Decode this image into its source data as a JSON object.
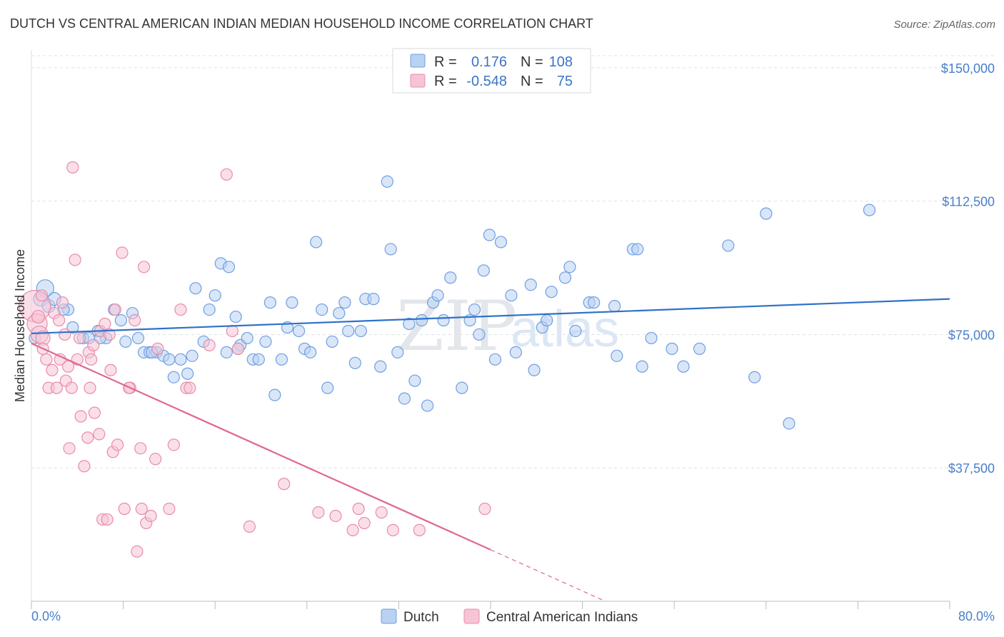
{
  "chart_data": {
    "type": "scatter",
    "title": "DUTCH VS CENTRAL AMERICAN INDIAN MEDIAN HOUSEHOLD INCOME CORRELATION CHART",
    "source": "Source: ZipAtlas.com",
    "ylabel": "Median Household Income",
    "xlim": [
      0,
      80
    ],
    "ylim": [
      0,
      155000
    ],
    "x_tick_labels": [
      "0.0%",
      "80.0%"
    ],
    "y_ticks": [
      {
        "value": 37500,
        "label": "$37,500"
      },
      {
        "value": 75000,
        "label": "$75,000"
      },
      {
        "value": 112500,
        "label": "$112,500"
      },
      {
        "value": 150000,
        "label": "$150,000"
      }
    ],
    "legend": {
      "rows": [
        {
          "r_label": "R =",
          "r_value": "0.176",
          "n_label": "N =",
          "n_value": "108"
        },
        {
          "r_label": "R =",
          "r_value": "-0.548",
          "n_label": "N =",
          "n_value": "75"
        }
      ]
    },
    "watermark": {
      "zip": "ZIP",
      "atlas": "atlas"
    },
    "series": [
      {
        "name": "Dutch",
        "color": "#6f9fe0",
        "fill": "#b9d1f2",
        "line_color": "#2e72c9",
        "trend": {
          "x0": 0,
          "y0": 75300,
          "x1": 80,
          "y1": 85000,
          "dashed_to": null
        },
        "points": [
          [
            1.2,
            88000,
            12
          ],
          [
            0.8,
            85000,
            10
          ],
          [
            1.5,
            83000,
            9
          ],
          [
            2.0,
            85000,
            9
          ],
          [
            3.2,
            82000,
            8
          ],
          [
            3.6,
            77000,
            8
          ],
          [
            4.5,
            74000,
            8
          ],
          [
            5.0,
            74000,
            8
          ],
          [
            5.8,
            76000,
            8
          ],
          [
            6.5,
            74000,
            8
          ],
          [
            7.2,
            82000,
            8
          ],
          [
            7.8,
            79000,
            8
          ],
          [
            8.2,
            73000,
            8
          ],
          [
            8.8,
            81000,
            8
          ],
          [
            9.3,
            74000,
            8
          ],
          [
            9.8,
            70000,
            8
          ],
          [
            10.3,
            70000,
            8
          ],
          [
            10.9,
            70000,
            8
          ],
          [
            11.5,
            69000,
            8
          ],
          [
            12.0,
            68000,
            8
          ],
          [
            12.4,
            63000,
            8
          ],
          [
            13.0,
            68000,
            8
          ],
          [
            13.6,
            64000,
            8
          ],
          [
            14.0,
            69000,
            8
          ],
          [
            14.3,
            88000,
            8
          ],
          [
            15.0,
            73000,
            8
          ],
          [
            15.5,
            82000,
            8
          ],
          [
            16.0,
            86000,
            8
          ],
          [
            16.5,
            95000,
            8
          ],
          [
            17.0,
            70000,
            8
          ],
          [
            17.2,
            94000,
            8
          ],
          [
            17.8,
            80000,
            8
          ],
          [
            18.2,
            72000,
            8
          ],
          [
            18.8,
            74000,
            8
          ],
          [
            19.3,
            68000,
            8
          ],
          [
            19.8,
            68000,
            8
          ],
          [
            20.4,
            73000,
            8
          ],
          [
            20.8,
            84000,
            8
          ],
          [
            21.2,
            58000,
            8
          ],
          [
            21.8,
            68000,
            8
          ],
          [
            22.3,
            77000,
            8
          ],
          [
            22.7,
            84000,
            8
          ],
          [
            23.3,
            76000,
            8
          ],
          [
            23.8,
            71000,
            8
          ],
          [
            24.3,
            70000,
            8
          ],
          [
            24.8,
            101000,
            8
          ],
          [
            25.3,
            82000,
            8
          ],
          [
            25.8,
            60000,
            8
          ],
          [
            26.2,
            73000,
            8
          ],
          [
            26.8,
            81000,
            8
          ],
          [
            27.3,
            84000,
            8
          ],
          [
            27.6,
            76000,
            8
          ],
          [
            28.2,
            67000,
            8
          ],
          [
            28.7,
            76000,
            8
          ],
          [
            29.1,
            85000,
            8
          ],
          [
            29.8,
            85000,
            8
          ],
          [
            30.4,
            66000,
            8
          ],
          [
            31.0,
            118000,
            8
          ],
          [
            31.3,
            99000,
            8
          ],
          [
            31.9,
            70000,
            8
          ],
          [
            32.5,
            57000,
            8
          ],
          [
            32.9,
            78000,
            8
          ],
          [
            33.4,
            62000,
            8
          ],
          [
            34.0,
            79000,
            8
          ],
          [
            34.5,
            55000,
            8
          ],
          [
            35.0,
            84000,
            8
          ],
          [
            35.4,
            86000,
            8
          ],
          [
            35.9,
            79000,
            8
          ],
          [
            36.5,
            91000,
            8
          ],
          [
            37.5,
            60000,
            8
          ],
          [
            38.2,
            79000,
            8
          ],
          [
            38.6,
            82000,
            8
          ],
          [
            39.0,
            75000,
            8
          ],
          [
            39.4,
            93000,
            8
          ],
          [
            39.9,
            103000,
            8
          ],
          [
            40.4,
            68000,
            8
          ],
          [
            40.9,
            101000,
            8
          ],
          [
            41.8,
            86000,
            8
          ],
          [
            42.2,
            70000,
            8
          ],
          [
            43.5,
            89000,
            8
          ],
          [
            43.8,
            65000,
            8
          ],
          [
            44.5,
            77000,
            8
          ],
          [
            44.9,
            79000,
            8
          ],
          [
            45.3,
            87000,
            8
          ],
          [
            46.5,
            91000,
            8
          ],
          [
            46.9,
            94000,
            8
          ],
          [
            47.4,
            76000,
            8
          ],
          [
            48.6,
            84000,
            8
          ],
          [
            49.0,
            84000,
            8
          ],
          [
            50.8,
            83000,
            8
          ],
          [
            51.0,
            69000,
            8
          ],
          [
            52.4,
            99000,
            8
          ],
          [
            52.8,
            99000,
            8
          ],
          [
            53.2,
            66000,
            8
          ],
          [
            54.0,
            74000,
            8
          ],
          [
            55.8,
            71000,
            8
          ],
          [
            56.8,
            66000,
            8
          ],
          [
            58.2,
            71000,
            8
          ],
          [
            60.7,
            100000,
            8
          ],
          [
            63.0,
            63000,
            8
          ],
          [
            64.0,
            109000,
            8
          ],
          [
            66.0,
            50000,
            8
          ],
          [
            73.0,
            110000,
            8
          ],
          [
            0.3,
            74000,
            8
          ],
          [
            2.8,
            82000,
            8
          ],
          [
            6.0,
            74000,
            8
          ],
          [
            10.5,
            70000,
            8
          ],
          [
            18.0,
            71000,
            8
          ]
        ]
      },
      {
        "name": "Central American Indians",
        "color": "#e88cab",
        "fill": "#f6c5d5",
        "line_color": "#e0688f",
        "trend": {
          "x0": 0,
          "y0": 72500,
          "x1": 40,
          "y1": 14500,
          "dashed_to": {
            "x": 50,
            "y": 0
          }
        },
        "points": [
          [
            0.3,
            83000,
            22
          ],
          [
            0.5,
            78000,
            14
          ],
          [
            0.7,
            75000,
            12
          ],
          [
            1.0,
            74000,
            10
          ],
          [
            0.6,
            80000,
            9
          ],
          [
            1.3,
            68000,
            8
          ],
          [
            1.5,
            60000,
            8
          ],
          [
            1.8,
            65000,
            8
          ],
          [
            2.0,
            81000,
            8
          ],
          [
            2.2,
            60000,
            8
          ],
          [
            2.5,
            68000,
            8
          ],
          [
            2.7,
            84000,
            8
          ],
          [
            2.9,
            75000,
            8
          ],
          [
            3.0,
            62000,
            8
          ],
          [
            3.2,
            66000,
            8
          ],
          [
            3.3,
            43000,
            8
          ],
          [
            3.5,
            60000,
            8
          ],
          [
            3.6,
            122000,
            8
          ],
          [
            3.8,
            96000,
            8
          ],
          [
            4.0,
            68000,
            8
          ],
          [
            4.2,
            74000,
            8
          ],
          [
            4.3,
            52000,
            8
          ],
          [
            4.6,
            38000,
            8
          ],
          [
            4.9,
            46000,
            8
          ],
          [
            5.0,
            70000,
            8
          ],
          [
            5.1,
            60000,
            8
          ],
          [
            5.4,
            72000,
            8
          ],
          [
            5.5,
            53000,
            8
          ],
          [
            5.9,
            47000,
            8
          ],
          [
            6.0,
            76000,
            8
          ],
          [
            6.2,
            23000,
            8
          ],
          [
            6.4,
            78000,
            8
          ],
          [
            6.6,
            23000,
            8
          ],
          [
            6.9,
            65000,
            8
          ],
          [
            7.1,
            42000,
            8
          ],
          [
            7.3,
            82000,
            8
          ],
          [
            7.5,
            44000,
            8
          ],
          [
            7.9,
            98000,
            8
          ],
          [
            8.1,
            26000,
            8
          ],
          [
            8.6,
            60000,
            8
          ],
          [
            9.0,
            79000,
            8
          ],
          [
            9.2,
            14000,
            8
          ],
          [
            9.5,
            43000,
            8
          ],
          [
            9.6,
            26000,
            8
          ],
          [
            9.8,
            94000,
            8
          ],
          [
            10.0,
            22000,
            8
          ],
          [
            10.4,
            24000,
            8
          ],
          [
            10.8,
            40000,
            8
          ],
          [
            11.0,
            71000,
            8
          ],
          [
            12.0,
            26000,
            8
          ],
          [
            12.4,
            44000,
            8
          ],
          [
            13.0,
            82000,
            8
          ],
          [
            13.5,
            60000,
            8
          ],
          [
            15.5,
            72000,
            8
          ],
          [
            17.0,
            120000,
            8
          ],
          [
            17.5,
            76000,
            8
          ],
          [
            18.0,
            71000,
            8
          ],
          [
            19.0,
            21000,
            8
          ],
          [
            22.0,
            33000,
            8
          ],
          [
            25.0,
            25000,
            8
          ],
          [
            26.5,
            24000,
            8
          ],
          [
            28.0,
            20000,
            8
          ],
          [
            28.5,
            26000,
            8
          ],
          [
            29.0,
            22000,
            8
          ],
          [
            30.5,
            25000,
            8
          ],
          [
            31.5,
            20000,
            8
          ],
          [
            33.8,
            20000,
            8
          ],
          [
            39.5,
            26000,
            8
          ],
          [
            1.0,
            71000,
            8
          ],
          [
            2.4,
            79000,
            8
          ],
          [
            5.2,
            68000,
            8
          ],
          [
            6.8,
            75000,
            8
          ],
          [
            8.5,
            60000,
            8
          ],
          [
            13.8,
            60000,
            8
          ],
          [
            0.9,
            86000,
            8
          ]
        ]
      }
    ]
  }
}
